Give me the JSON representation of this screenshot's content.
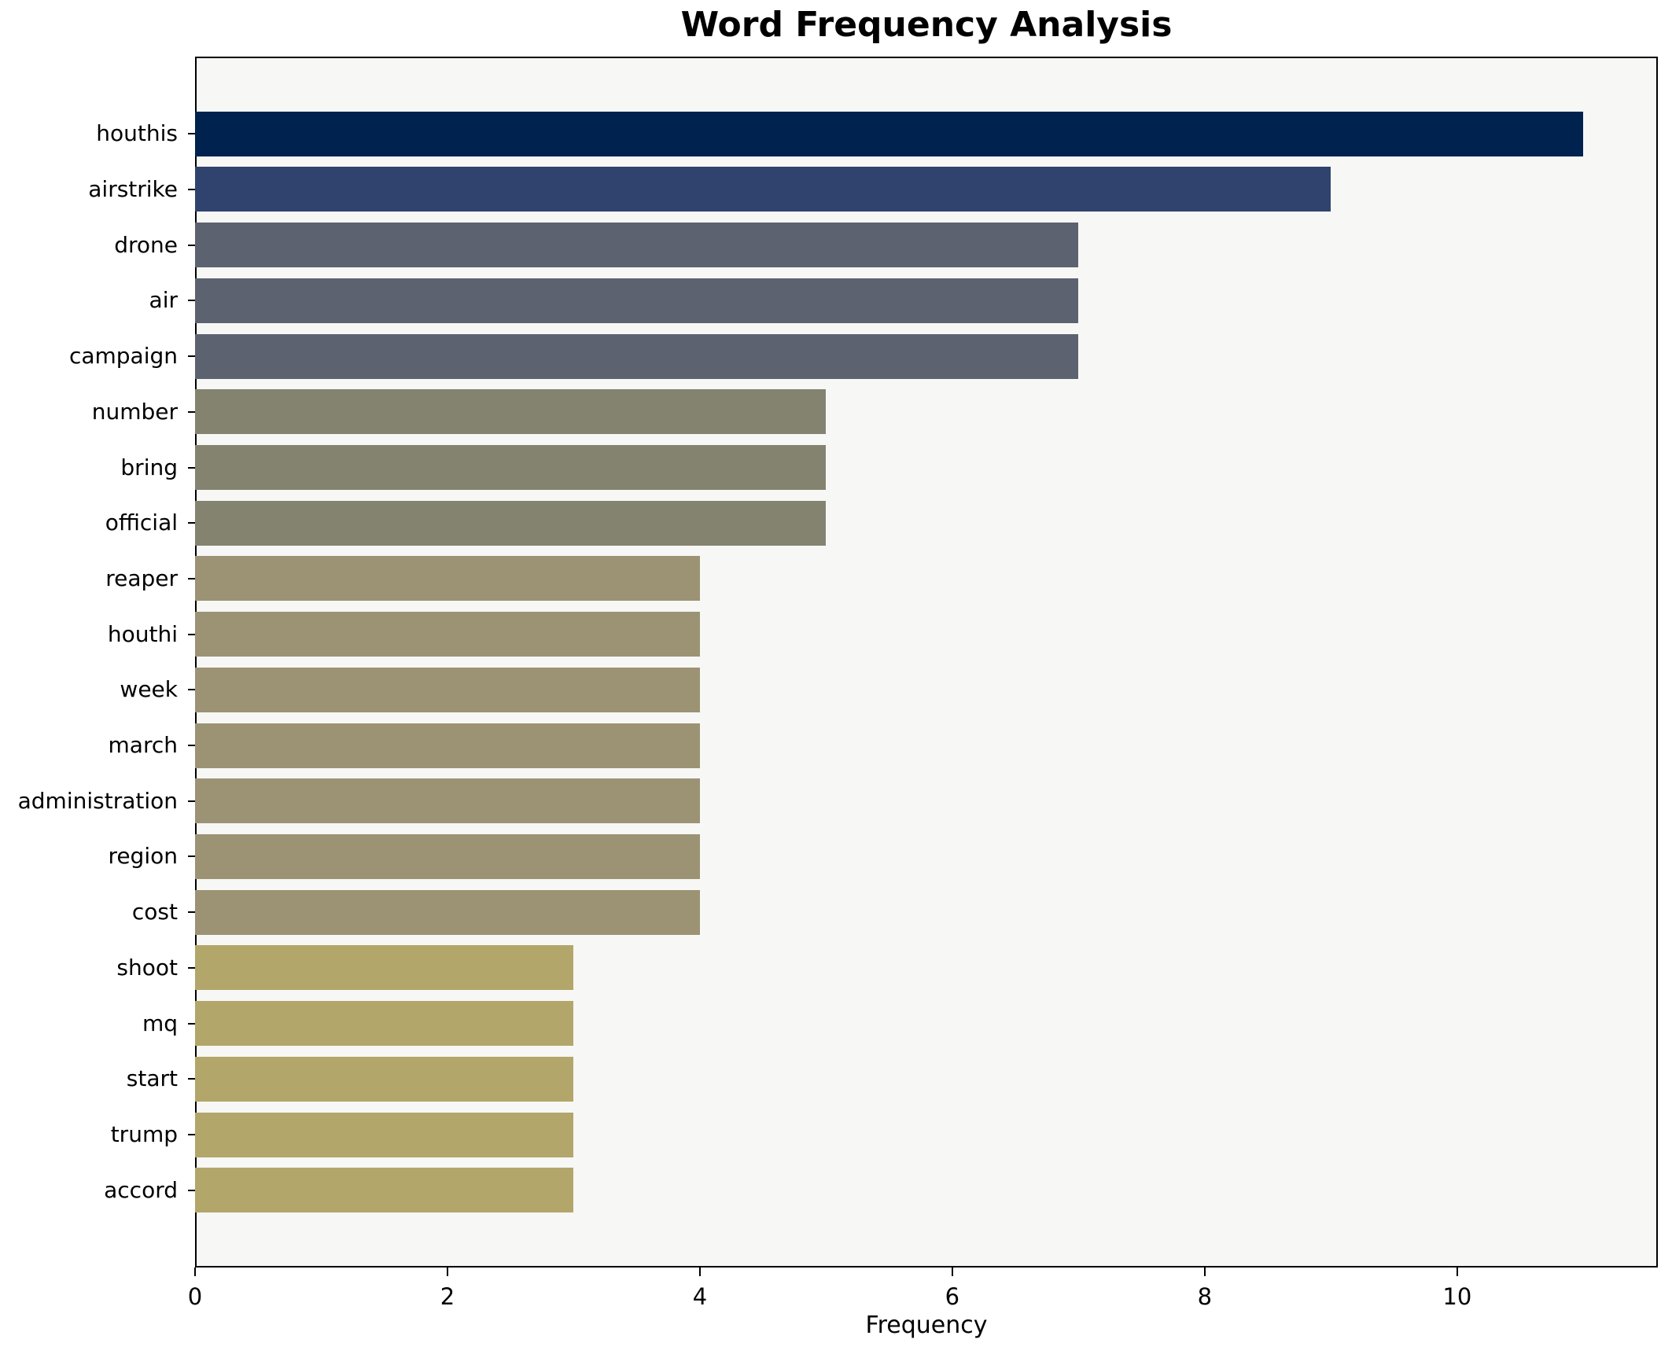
{
  "chart_data": {
    "type": "bar",
    "orientation": "horizontal",
    "title": "Word Frequency Analysis",
    "xlabel": "Frequency",
    "ylabel": "",
    "categories": [
      "houthis",
      "airstrike",
      "drone",
      "air",
      "campaign",
      "number",
      "bring",
      "official",
      "reaper",
      "houthi",
      "week",
      "march",
      "administration",
      "region",
      "cost",
      "shoot",
      "mq",
      "start",
      "trump",
      "accord"
    ],
    "values": [
      11,
      9,
      7,
      7,
      7,
      5,
      5,
      5,
      4,
      4,
      4,
      4,
      4,
      4,
      4,
      3,
      3,
      3,
      3,
      3
    ],
    "bar_colors": [
      "#00224e",
      "#2f436e",
      "#5c6270",
      "#5c6270",
      "#5c6270",
      "#848370",
      "#848370",
      "#848370",
      "#9c9374",
      "#9c9374",
      "#9c9374",
      "#9c9374",
      "#9c9374",
      "#9c9374",
      "#9c9374",
      "#b3a66a",
      "#b3a66a",
      "#b3a66a",
      "#b3a66a",
      "#b3a66a"
    ],
    "x_ticks": [
      0,
      2,
      4,
      6,
      8,
      10
    ],
    "xlim": [
      0,
      11.59
    ],
    "grid": false,
    "legend_position": "none",
    "plot_background": "#f7f7f6",
    "figure_background": "#ffffff",
    "spine_color": "#000000"
  }
}
